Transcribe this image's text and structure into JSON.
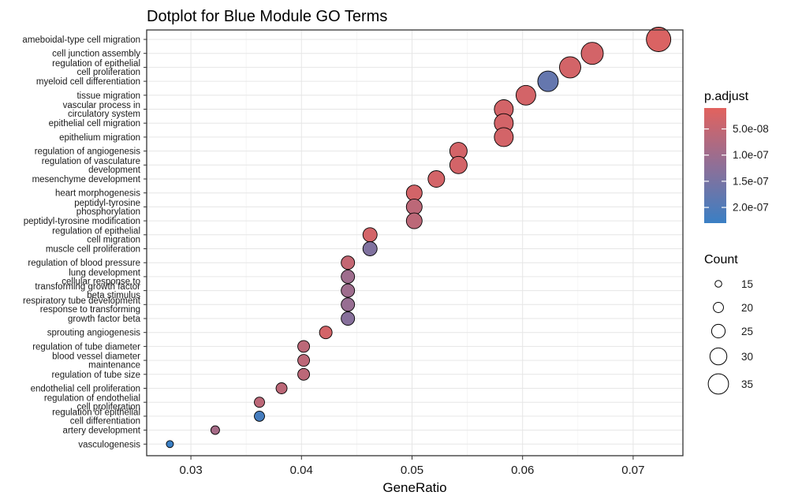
{
  "chart_data": {
    "type": "scatter",
    "title": "Dotplot for Blue Module GO Terms",
    "xlabel": "GeneRatio",
    "ylabel": "",
    "xlim": [
      0.026,
      0.0745
    ],
    "xticks": [
      0.03,
      0.04,
      0.05,
      0.06,
      0.07
    ],
    "xtick_labels": [
      "0.03",
      "0.04",
      "0.05",
      "0.06",
      "0.07"
    ],
    "grid": true,
    "legend_position": "right",
    "color_legend": {
      "title": "p.adjust",
      "labels": [
        "5.0e-08",
        "1.0e-07",
        "1.5e-07",
        "2.0e-07"
      ],
      "values": [
        5e-08,
        1e-07,
        1.5e-07,
        2e-07
      ],
      "range": [
        1e-08,
        2.3e-07
      ],
      "low_color": "#e2625e",
      "high_color": "#3a7fc4"
    },
    "size_legend": {
      "title": "Count",
      "labels": [
        "15",
        "20",
        "25",
        "30",
        "35"
      ],
      "values": [
        15,
        20,
        25,
        30,
        35
      ]
    },
    "terms": [
      {
        "label": [
          "ameboidal-type cell migration"
        ],
        "x": 0.0723,
        "count": 36,
        "padj": 2e-08
      },
      {
        "label": [
          "cell junction assembly"
        ],
        "x": 0.0663,
        "count": 33,
        "padj": 3e-08
      },
      {
        "label": [
          "regulation of epithelial",
          "cell proliferation"
        ],
        "x": 0.0643,
        "count": 32,
        "padj": 3e-08
      },
      {
        "label": [
          "myeloid cell differentiation"
        ],
        "x": 0.0623,
        "count": 31,
        "padj": 1.75e-07
      },
      {
        "label": [
          "tissue migration"
        ],
        "x": 0.0603,
        "count": 30,
        "padj": 3e-08
      },
      {
        "label": [
          "vascular process in",
          "circulatory system"
        ],
        "x": 0.0583,
        "count": 29,
        "padj": 3e-08
      },
      {
        "label": [
          "epithelial cell migration"
        ],
        "x": 0.0583,
        "count": 29,
        "padj": 3e-08
      },
      {
        "label": [
          "epithelium migration"
        ],
        "x": 0.0583,
        "count": 29,
        "padj": 3e-08
      },
      {
        "label": [
          "regulation of angiogenesis"
        ],
        "x": 0.0542,
        "count": 27,
        "padj": 3e-08
      },
      {
        "label": [
          "regulation of vasculature",
          "development"
        ],
        "x": 0.0542,
        "count": 27,
        "padj": 3e-08
      },
      {
        "label": [
          "mesenchyme development"
        ],
        "x": 0.0522,
        "count": 26,
        "padj": 3e-08
      },
      {
        "label": [
          "heart morphogenesis"
        ],
        "x": 0.0502,
        "count": 25,
        "padj": 3e-08
      },
      {
        "label": [
          "peptidyl-tyrosine",
          "phosphorylation"
        ],
        "x": 0.0502,
        "count": 25,
        "padj": 6e-08
      },
      {
        "label": [
          "peptidyl-tyrosine modification"
        ],
        "x": 0.0502,
        "count": 25,
        "padj": 6e-08
      },
      {
        "label": [
          "regulation of epithelial",
          "cell migration"
        ],
        "x": 0.0462,
        "count": 23,
        "padj": 3e-08
      },
      {
        "label": [
          "muscle cell proliferation"
        ],
        "x": 0.0462,
        "count": 23,
        "padj": 1.4e-07
      },
      {
        "label": [
          "regulation of blood pressure"
        ],
        "x": 0.0442,
        "count": 22,
        "padj": 5e-08
      },
      {
        "label": [
          "lung development",
          "cellular response to"
        ],
        "x": 0.0442,
        "count": 22,
        "padj": 1e-07
      },
      {
        "label": [
          "transforming growth factor",
          "beta stimulus"
        ],
        "x": 0.0442,
        "count": 22,
        "padj": 1e-07
      },
      {
        "label": [
          "respiratory tube development",
          "response to transforming"
        ],
        "x": 0.0442,
        "count": 22,
        "padj": 1.1e-07
      },
      {
        "label": [
          "growth factor beta"
        ],
        "x": 0.0442,
        "count": 22,
        "padj": 1.3e-07
      },
      {
        "label": [
          "sprouting angiogenesis"
        ],
        "x": 0.0422,
        "count": 21,
        "padj": 3e-08
      },
      {
        "label": [
          "regulation of tube diameter"
        ],
        "x": 0.0402,
        "count": 20,
        "padj": 6e-08
      },
      {
        "label": [
          "blood vessel diameter",
          "maintenance"
        ],
        "x": 0.0402,
        "count": 20,
        "padj": 6e-08
      },
      {
        "label": [
          "regulation of tube size"
        ],
        "x": 0.0402,
        "count": 20,
        "padj": 6e-08
      },
      {
        "label": [
          "endothelial cell proliferation"
        ],
        "x": 0.0382,
        "count": 19,
        "padj": 6e-08
      },
      {
        "label": [
          "regulation of endothelial",
          "cell proliferation"
        ],
        "x": 0.0362,
        "count": 18,
        "padj": 6e-08
      },
      {
        "label": [
          "regulation of epithelial",
          "cell differentiation"
        ],
        "x": 0.0362,
        "count": 18,
        "padj": 2.15e-07
      },
      {
        "label": [
          "artery development"
        ],
        "x": 0.0322,
        "count": 16,
        "padj": 9e-08
      },
      {
        "label": [
          "vasculogenesis"
        ],
        "x": 0.0281,
        "count": 14,
        "padj": 2.3e-07
      }
    ]
  }
}
